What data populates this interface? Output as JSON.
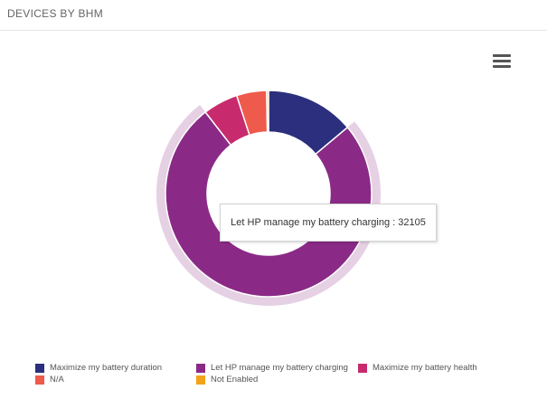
{
  "panel": {
    "title": "DEVICES BY BHM"
  },
  "menu": {
    "icon": "hamburger-menu-icon"
  },
  "tooltip": {
    "label": "Let HP manage my battery charging",
    "value": 32105,
    "text": "Let HP manage my battery charging : 32105"
  },
  "chart_data": {
    "type": "pie",
    "variant": "donut",
    "title": "",
    "highlighted": "Let HP manage my battery charging",
    "series": [
      {
        "name": "Maximize my battery duration",
        "color": "#2b2f7e",
        "share": 0.139
      },
      {
        "name": "Let HP manage my battery charging",
        "color": "#8a2a86",
        "share": 0.756
      },
      {
        "name": "Maximize my battery health",
        "color": "#c72b6e",
        "share": 0.055
      },
      {
        "name": "N/A",
        "color": "#ee5a4c",
        "share": 0.047
      },
      {
        "name": "Not Enabled",
        "color": "#f2a21b",
        "share": 0.003
      }
    ],
    "legend_position": "bottom"
  }
}
